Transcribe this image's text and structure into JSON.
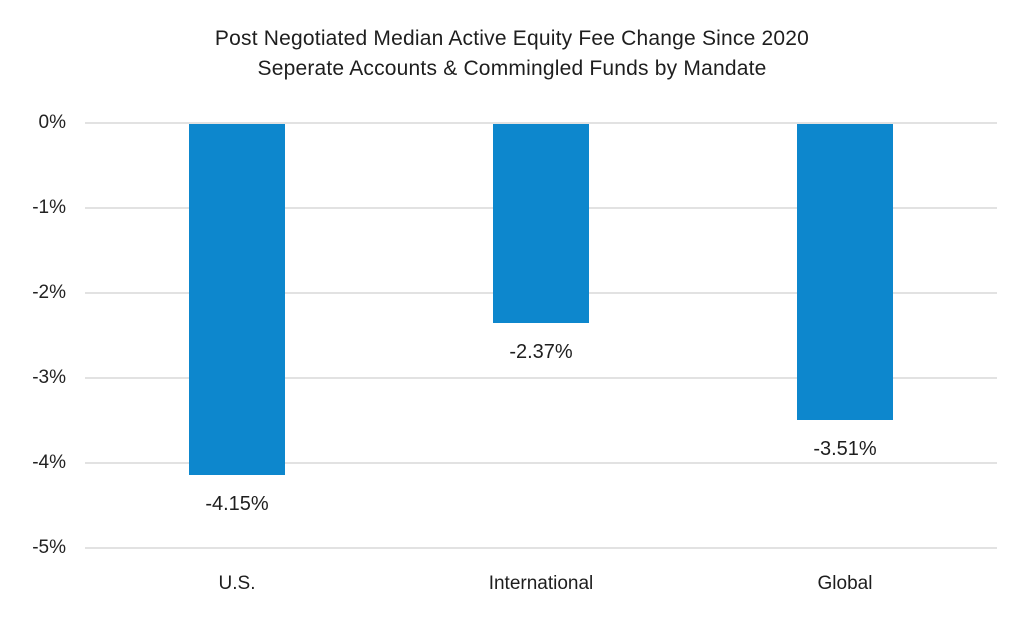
{
  "title": {
    "line1": "Post Negotiated Median Active Equity Fee Change Since 2020",
    "line2": "Seperate Accounts & Commingled Funds by Mandate"
  },
  "chart_data": {
    "type": "bar",
    "title": "Post Negotiated Median Active Equity Fee Change Since 2020 Seperate Accounts & Commingled Funds by Mandate",
    "categories": [
      "U.S.",
      "International",
      "Global"
    ],
    "values": [
      -4.15,
      -2.37,
      -3.51
    ],
    "value_labels": [
      "-4.15%",
      "-2.37%",
      "-3.51%"
    ],
    "xlabel": "",
    "ylabel": "",
    "ylim": [
      0,
      -5
    ],
    "y_ticks": [
      "0%",
      "-1%",
      "-2%",
      "-3%",
      "-4%",
      "-5%"
    ],
    "grid": "horizontal",
    "legend": "none",
    "bar_color": "#0d87cd",
    "gridline_color": "#e2e2e2",
    "text_color": "#1e1e1e"
  }
}
